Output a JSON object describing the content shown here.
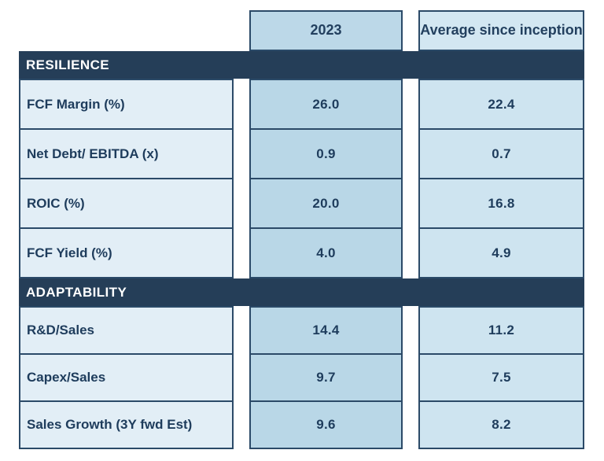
{
  "table": {
    "columns": [
      {
        "id": "y2023",
        "label": "2023"
      },
      {
        "id": "avg",
        "label": "Average since inception"
      }
    ],
    "sections": [
      {
        "header": "RESILIENCE",
        "rows": [
          {
            "label": "FCF Margin (%)",
            "values": [
              "26.0",
              "22.4"
            ]
          },
          {
            "label": "Net Debt/ EBITDA (x)",
            "values": [
              "0.9",
              "0.7"
            ]
          },
          {
            "label": "ROIC (%)",
            "values": [
              "20.0",
              "16.8"
            ]
          },
          {
            "label": "FCF Yield (%)",
            "values": [
              "4.0",
              "4.9"
            ]
          }
        ]
      },
      {
        "header": "ADAPTABILITY",
        "rows": [
          {
            "label": "R&D/Sales",
            "values": [
              "14.4",
              "11.2"
            ]
          },
          {
            "label": "Capex/Sales",
            "values": [
              "9.7",
              "7.5"
            ]
          },
          {
            "label": "Sales Growth (3Y fwd Est)",
            "values": [
              "9.6",
              "8.2"
            ]
          }
        ]
      }
    ]
  },
  "colors": {
    "section_bar": "#253e58",
    "border": "#2b4a68",
    "label_cell_bg": "#e2eef6",
    "col_2023_bg": "#b9d7e7",
    "col_avg_bg": "#cee4f0",
    "header_2023_bg": "#bcd8e8",
    "header_avg_bg": "#d3e7f2",
    "text": "#1e3c5c",
    "section_text": "#ffffff"
  },
  "chart_data": {
    "type": "table",
    "title": "",
    "categories": [
      "FCF Margin (%)",
      "Net Debt/ EBITDA (x)",
      "ROIC (%)",
      "FCF Yield (%)",
      "R&D/Sales",
      "Capex/Sales",
      "Sales Growth (3Y fwd Est)"
    ],
    "series": [
      {
        "name": "2023",
        "values": [
          26.0,
          0.9,
          20.0,
          4.0,
          14.4,
          9.7,
          9.6
        ]
      },
      {
        "name": "Average since inception",
        "values": [
          22.4,
          0.7,
          16.8,
          4.9,
          11.2,
          7.5,
          8.2
        ]
      }
    ],
    "sections": [
      {
        "name": "RESILIENCE",
        "category_indexes": [
          0,
          1,
          2,
          3
        ]
      },
      {
        "name": "ADAPTABILITY",
        "category_indexes": [
          4,
          5,
          6
        ]
      }
    ],
    "legend_position": "top",
    "grid": false
  }
}
